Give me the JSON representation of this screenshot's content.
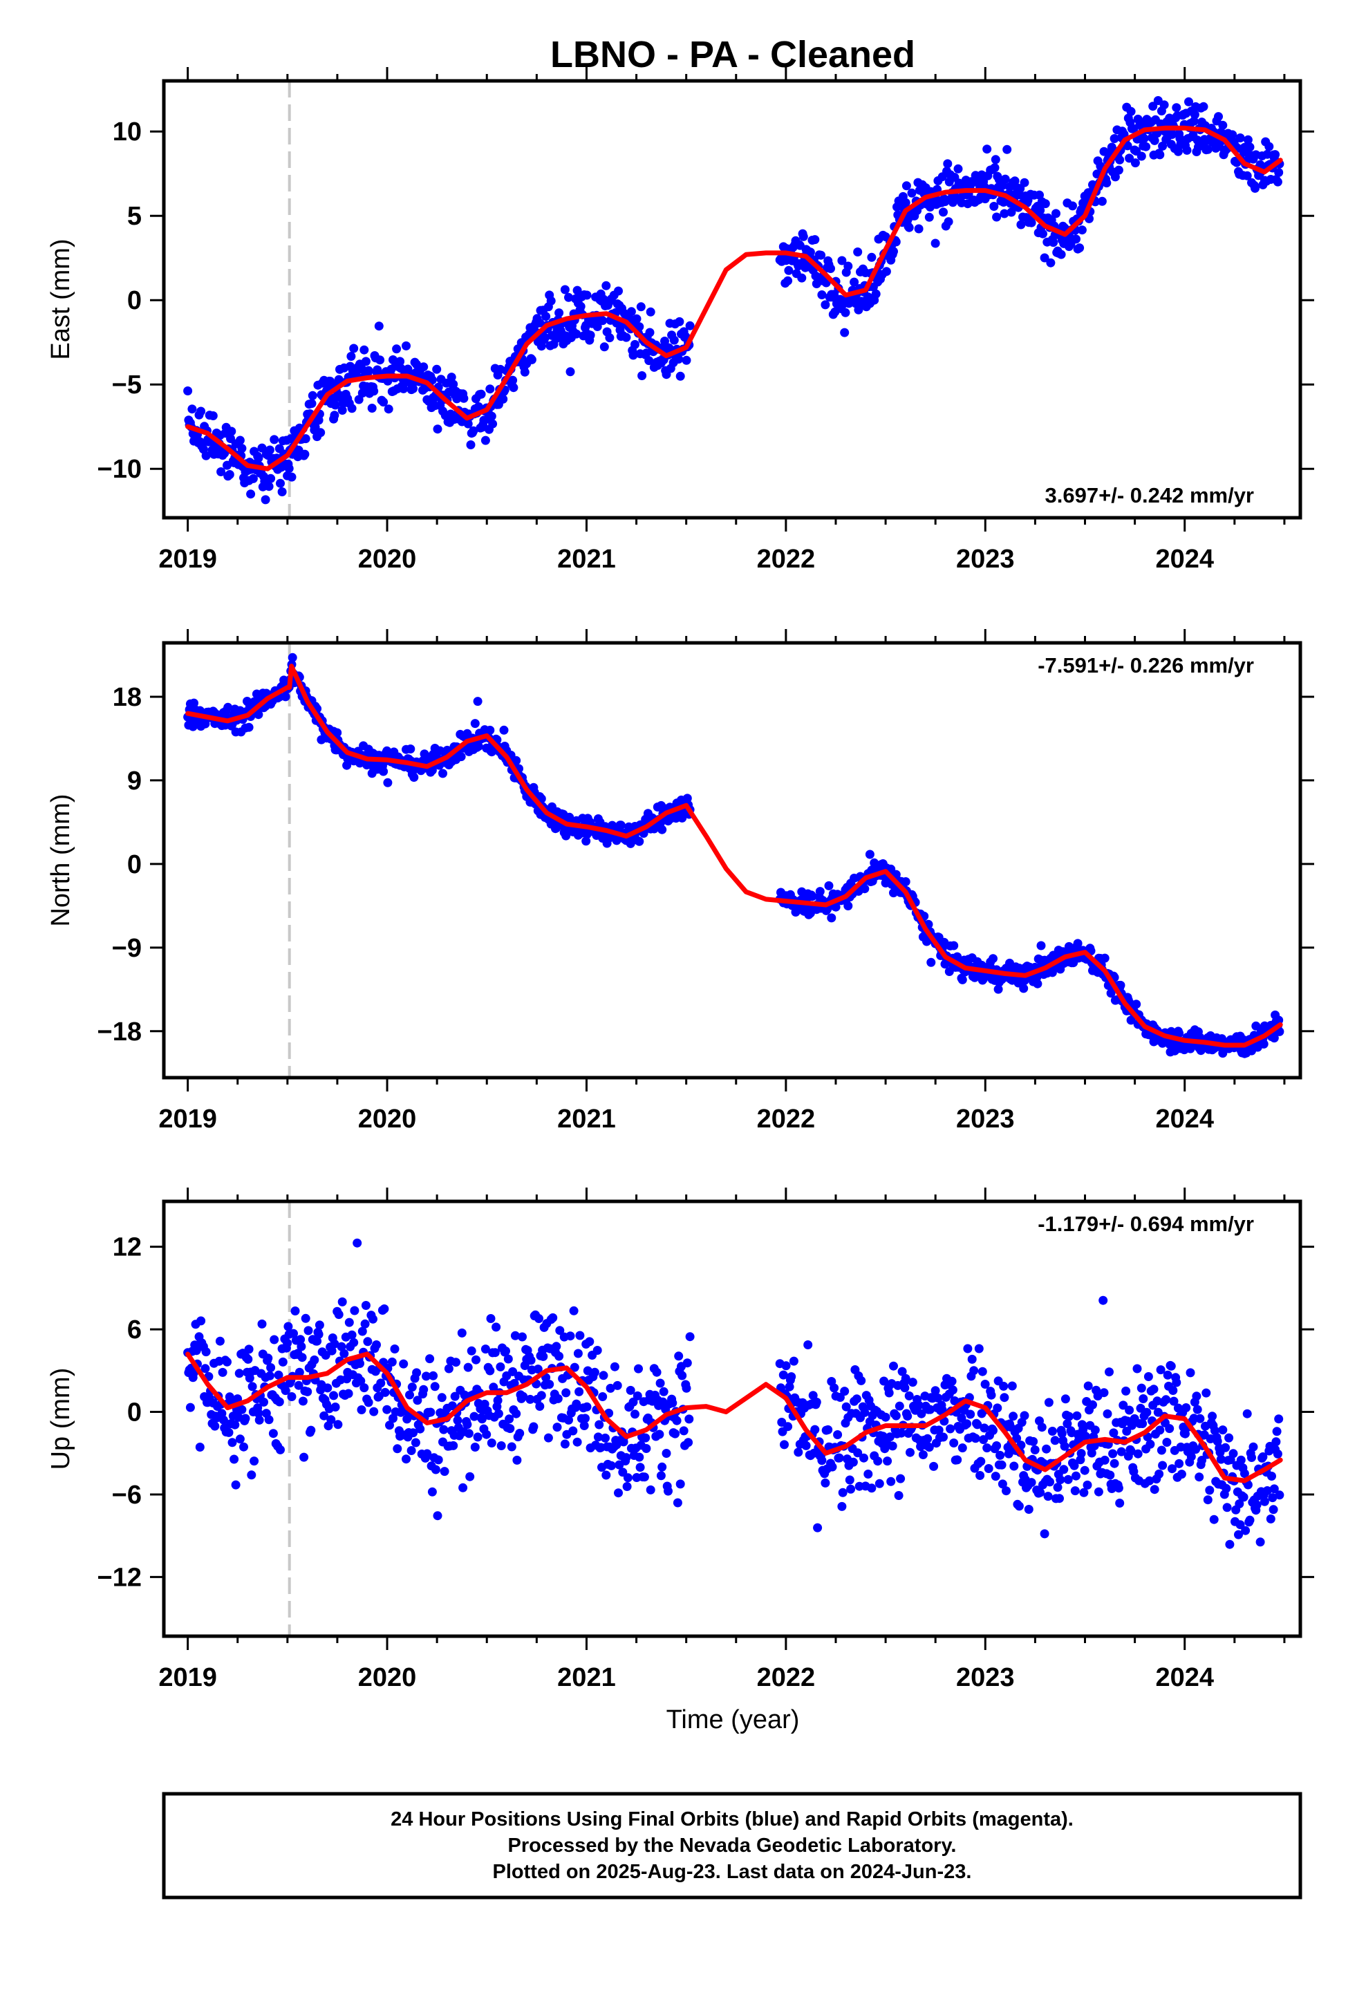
{
  "title": "LBNO  - PA - Cleaned",
  "xlabel": "Time (year)",
  "footer": {
    "line1": "24 Hour Positions Using Final Orbits (blue) and Rapid Orbits (magenta).",
    "line2": "Processed by the Nevada Geodetic Laboratory.",
    "line3": "Plotted on 2025-Aug-23. Last data on 2024-Jun-23."
  },
  "chart_data": [
    {
      "type": "scatter",
      "ylabel": "East (mm)",
      "rate": "3.697+/- 0.242 mm/yr",
      "rate_position": "bottom-right",
      "xlim": [
        2018.88,
        2024.58
      ],
      "ylim": [
        -12.9,
        13.0
      ],
      "xticks": [
        2019,
        2020,
        2021,
        2022,
        2023,
        2024
      ],
      "yticks": [
        -10,
        -5,
        0,
        5,
        10
      ],
      "equipment_change": 2019.51,
      "gaps": [
        [
          2021.52,
          2021.97
        ]
      ],
      "noise": 1.15,
      "point_color": "#0000ff",
      "trend_color": "#ff0000",
      "trend": {
        "x": [
          2019.0,
          2019.1,
          2019.2,
          2019.3,
          2019.4,
          2019.5,
          2019.6,
          2019.7,
          2019.8,
          2019.9,
          2020.0,
          2020.1,
          2020.2,
          2020.3,
          2020.4,
          2020.5,
          2020.6,
          2020.7,
          2020.8,
          2020.9,
          2021.0,
          2021.1,
          2021.2,
          2021.3,
          2021.4,
          2021.5,
          2021.6,
          2021.7,
          2021.8,
          2021.9,
          2022.0,
          2022.1,
          2022.2,
          2022.3,
          2022.4,
          2022.5,
          2022.6,
          2022.7,
          2022.8,
          2022.9,
          2023.0,
          2023.1,
          2023.2,
          2023.3,
          2023.4,
          2023.5,
          2023.6,
          2023.7,
          2023.8,
          2023.9,
          2024.0,
          2024.1,
          2024.2,
          2024.3,
          2024.4,
          2024.48
        ],
        "y": [
          -7.5,
          -7.9,
          -8.8,
          -9.8,
          -10.0,
          -9.2,
          -7.4,
          -5.6,
          -4.8,
          -4.6,
          -4.5,
          -4.5,
          -4.9,
          -6.0,
          -7.0,
          -6.5,
          -4.6,
          -2.6,
          -1.5,
          -1.1,
          -0.9,
          -0.8,
          -1.3,
          -2.5,
          -3.3,
          -2.8,
          -0.5,
          1.8,
          2.7,
          2.8,
          2.8,
          2.6,
          1.5,
          0.3,
          0.6,
          3.0,
          5.3,
          6.1,
          6.4,
          6.5,
          6.5,
          6.2,
          5.5,
          4.4,
          3.9,
          5.0,
          7.8,
          9.5,
          10.1,
          10.2,
          10.2,
          10.1,
          9.5,
          8.1,
          7.6,
          8.3
        ]
      }
    },
    {
      "type": "scatter",
      "ylabel": "North (mm)",
      "rate": "-7.591+/- 0.226 mm/yr",
      "rate_position": "top-right",
      "xlim": [
        2018.88,
        2024.58
      ],
      "ylim": [
        -23.0,
        23.8
      ],
      "xticks": [
        2019,
        2020,
        2021,
        2022,
        2023,
        2024
      ],
      "yticks": [
        -18,
        -9,
        0,
        9,
        18
      ],
      "equipment_change": 2019.51,
      "gaps": [
        [
          2021.52,
          2021.97
        ]
      ],
      "noise": 0.9,
      "point_color": "#0000ff",
      "trend_color": "#ff0000",
      "trend": {
        "x": [
          2019.0,
          2019.1,
          2019.2,
          2019.3,
          2019.4,
          2019.5,
          2019.51,
          2019.52,
          2019.6,
          2019.7,
          2019.8,
          2019.9,
          2020.0,
          2020.1,
          2020.2,
          2020.3,
          2020.4,
          2020.5,
          2020.6,
          2020.7,
          2020.8,
          2020.9,
          2021.0,
          2021.1,
          2021.2,
          2021.3,
          2021.4,
          2021.5,
          2021.6,
          2021.7,
          2021.8,
          2021.9,
          2022.0,
          2022.1,
          2022.2,
          2022.3,
          2022.4,
          2022.5,
          2022.6,
          2022.7,
          2022.8,
          2022.9,
          2023.0,
          2023.1,
          2023.2,
          2023.3,
          2023.4,
          2023.5,
          2023.6,
          2023.7,
          2023.8,
          2023.9,
          2024.0,
          2024.1,
          2024.2,
          2024.3,
          2024.4,
          2024.48
        ],
        "y": [
          16.2,
          15.8,
          15.4,
          16.0,
          17.8,
          19.0,
          19.0,
          21.3,
          17.5,
          14.2,
          12.0,
          11.3,
          11.2,
          10.9,
          10.5,
          11.5,
          13.2,
          13.8,
          11.5,
          8.0,
          5.5,
          4.3,
          4.0,
          3.6,
          3.0,
          4.0,
          5.5,
          6.3,
          3.0,
          -0.5,
          -3.0,
          -3.8,
          -4.0,
          -4.2,
          -4.4,
          -3.5,
          -1.5,
          -0.8,
          -3.0,
          -7.0,
          -10.0,
          -11.2,
          -11.5,
          -11.8,
          -12.0,
          -11.2,
          -10.0,
          -9.5,
          -11.5,
          -15.0,
          -17.5,
          -18.5,
          -19.0,
          -19.2,
          -19.5,
          -19.5,
          -18.5,
          -17.3
        ]
      }
    },
    {
      "type": "scatter",
      "ylabel": "Up (mm)",
      "rate": "-1.179+/- 0.694 mm/yr",
      "rate_position": "top-right",
      "xlim": [
        2018.88,
        2024.58
      ],
      "ylim": [
        -16.3,
        15.3
      ],
      "xticks": [
        2019,
        2020,
        2021,
        2022,
        2023,
        2024
      ],
      "yticks": [
        -12,
        -6,
        0,
        6,
        12
      ],
      "equipment_change": 2019.51,
      "gaps": [
        [
          2021.52,
          2021.97
        ]
      ],
      "noise": 3.3,
      "point_color": "#0000ff",
      "trend_color": "#ff0000",
      "trend": {
        "x": [
          2019.0,
          2019.1,
          2019.2,
          2019.3,
          2019.4,
          2019.5,
          2019.6,
          2019.7,
          2019.8,
          2019.9,
          2020.0,
          2020.1,
          2020.2,
          2020.3,
          2020.4,
          2020.5,
          2020.6,
          2020.7,
          2020.8,
          2020.9,
          2021.0,
          2021.1,
          2021.2,
          2021.3,
          2021.4,
          2021.5,
          2021.6,
          2021.7,
          2021.8,
          2021.9,
          2022.0,
          2022.1,
          2022.2,
          2022.3,
          2022.4,
          2022.5,
          2022.6,
          2022.7,
          2022.8,
          2022.9,
          2023.0,
          2023.1,
          2023.2,
          2023.3,
          2023.4,
          2023.5,
          2023.6,
          2023.7,
          2023.8,
          2023.9,
          2024.0,
          2024.1,
          2024.2,
          2024.3,
          2024.4,
          2024.48
        ],
        "y": [
          4.2,
          2.0,
          0.3,
          0.8,
          1.8,
          2.5,
          2.5,
          2.8,
          3.8,
          4.2,
          2.8,
          0.3,
          -0.8,
          -0.5,
          0.8,
          1.4,
          1.4,
          2.0,
          3.0,
          3.2,
          1.8,
          -0.5,
          -1.8,
          -1.3,
          -0.2,
          0.3,
          0.4,
          0.0,
          1.0,
          2.0,
          1.0,
          -1.3,
          -3.0,
          -2.5,
          -1.5,
          -1.0,
          -1.0,
          -1.0,
          -0.2,
          0.8,
          0.3,
          -1.5,
          -3.5,
          -4.2,
          -3.2,
          -2.2,
          -2.0,
          -2.2,
          -1.5,
          -0.3,
          -0.5,
          -2.5,
          -4.8,
          -5.0,
          -4.2,
          -3.5
        ]
      }
    }
  ]
}
